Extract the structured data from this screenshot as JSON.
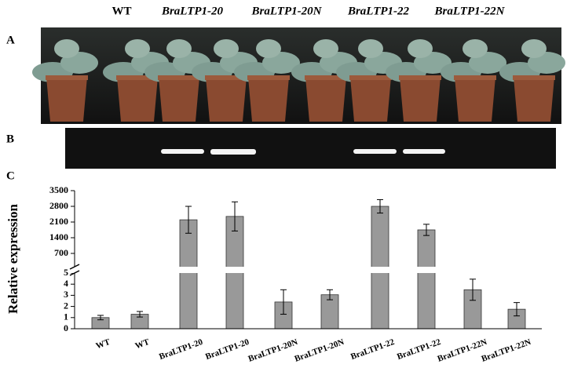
{
  "chart_data": {
    "type": "bar",
    "panel_labels": [
      "A",
      "B",
      "C"
    ],
    "column_labels": [
      "WT",
      "BraLTP1-20",
      "BraLTP1-20N",
      "BraLTP1-22",
      "BraLTP1-22N"
    ],
    "ylabel": "Relative expression",
    "categories": [
      "WT",
      "WT",
      "BraLTP1-20",
      "BraLTP1-20",
      "BraLTP1-20N",
      "BraLTP1-20N",
      "BraLTP1-22",
      "BraLTP1-22",
      "BraLTP1-22N",
      "BraLTP1-22N"
    ],
    "values": [
      1.0,
      1.3,
      2200,
      2350,
      2.4,
      3.05,
      2800,
      1750,
      3.5,
      1.75
    ],
    "errors": [
      0.2,
      0.25,
      600,
      650,
      1.1,
      0.45,
      300,
      250,
      0.95,
      0.6
    ],
    "color": "#999999",
    "ylim": [
      0,
      3500
    ],
    "ybreak": [
      5,
      105
    ],
    "yticks": [
      0,
      1,
      2,
      3,
      4,
      5,
      700,
      1400,
      2100,
      2800,
      3500
    ]
  }
}
